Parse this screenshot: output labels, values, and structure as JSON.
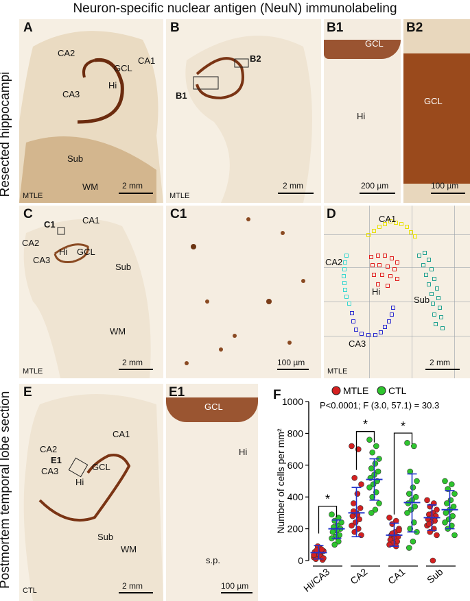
{
  "figure": {
    "title": "Neuron-specific nuclear antigen (NeuN) immunolabeling",
    "side_label_top": "Resected hippocampi",
    "side_label_bottom": "Postmortem temporal lobe section"
  },
  "panels": {
    "A": {
      "letter": "A",
      "regions": [
        "CA2",
        "CA1",
        "GCL",
        "Hi",
        "CA3",
        "Sub",
        "WM"
      ],
      "group": "MTLE",
      "scale": "2 mm"
    },
    "B": {
      "letter": "B",
      "insets": [
        "B1",
        "B2"
      ],
      "group": "MTLE",
      "scale": "2 mm"
    },
    "B1": {
      "letter": "B1",
      "regions": [
        "GCL",
        "Hi"
      ],
      "scale": "200 µm"
    },
    "B2": {
      "letter": "B2",
      "regions": [
        "GCL"
      ],
      "scale": "100 µm"
    },
    "C": {
      "letter": "C",
      "inset": "C1",
      "regions": [
        "CA1",
        "CA2",
        "Hi",
        "GCL",
        "CA3",
        "Sub",
        "WM"
      ],
      "group": "MTLE",
      "scale": "2 mm"
    },
    "C1": {
      "letter": "C1",
      "scale": "100 µm"
    },
    "D": {
      "letter": "D",
      "regions": [
        "CA1",
        "CA2",
        "Hi",
        "Sub",
        "CA3"
      ],
      "group": "MTLE",
      "scale": "2 mm",
      "colors": {
        "CA1": "#e8e000",
        "CA2": "#37d6d0",
        "Hi": "#e02020",
        "CA3": "#2a2ad0",
        "Sub": "#20a090"
      }
    },
    "E": {
      "letter": "E",
      "inset": "E1",
      "regions": [
        "CA1",
        "CA2",
        "CA3",
        "GCL",
        "Hi",
        "Sub",
        "WM"
      ],
      "group": "CTL",
      "scale": "2 mm"
    },
    "E1": {
      "letter": "E1",
      "regions": [
        "GCL",
        "Hi",
        "s.p."
      ],
      "scale": "100 µm"
    },
    "F": {
      "letter": "F"
    }
  },
  "chart_data": {
    "type": "scatter",
    "legend": [
      {
        "name": "MTLE",
        "color": "#d42020"
      },
      {
        "name": "CTL",
        "color": "#2ec42e"
      }
    ],
    "stats_text": "P<0.0001; F (3.0, 57.1) = 30.3",
    "ylabel": "Number of cells per mm²",
    "ylim": [
      0,
      1000
    ],
    "yticks": [
      0,
      200,
      400,
      600,
      800,
      1000
    ],
    "categories": [
      "Hi/CA3",
      "CA2",
      "CA1",
      "Sub"
    ],
    "significance": [
      "*",
      "*",
      "*"
    ],
    "series": [
      {
        "name": "MTLE",
        "color": "#d42020",
        "mean": [
          50,
          300,
          160,
          270
        ],
        "sd_low": [
          10,
          150,
          90,
          190
        ],
        "sd_high": [
          95,
          460,
          235,
          350
        ],
        "points": [
          [
            20,
            30,
            45,
            60,
            80,
            10,
            5,
            40,
            55,
            70,
            90,
            35,
            25,
            65,
            15
          ],
          [
            720,
            700,
            520,
            480,
            420,
            360,
            330,
            300,
            280,
            260,
            240,
            220,
            200,
            180,
            160,
            290,
            310
          ],
          [
            270,
            250,
            230,
            200,
            180,
            160,
            150,
            140,
            130,
            120,
            110,
            100,
            90,
            170,
            190
          ],
          [
            380,
            360,
            340,
            320,
            300,
            290,
            280,
            270,
            260,
            250,
            240,
            220,
            200,
            180,
            160,
            0,
            230
          ]
        ]
      },
      {
        "name": "CTL",
        "color": "#2ec42e",
        "mean": [
          200,
          510,
          365,
          320
        ],
        "sd_low": [
          140,
          380,
          180,
          200
        ],
        "sd_high": [
          255,
          640,
          545,
          440
        ],
        "points": [
          [
            290,
            270,
            250,
            240,
            220,
            210,
            200,
            190,
            180,
            160,
            150,
            140,
            120,
            100
          ],
          [
            760,
            720,
            680,
            640,
            610,
            580,
            560,
            540,
            520,
            500,
            480,
            460,
            430,
            400,
            360,
            320,
            300
          ],
          [
            740,
            720,
            560,
            500,
            460,
            420,
            400,
            380,
            360,
            340,
            320,
            300,
            240,
            200,
            180,
            120,
            80
          ],
          [
            500,
            480,
            450,
            420,
            380,
            360,
            340,
            320,
            300,
            280,
            260,
            240,
            220,
            200,
            160
          ]
        ]
      }
    ]
  }
}
